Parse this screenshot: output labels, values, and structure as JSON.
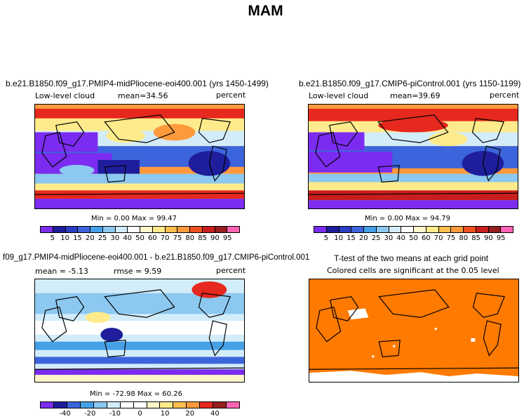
{
  "figure": {
    "title": "MAM",
    "colors": {
      "purple": "#7b2cf0",
      "navy": "#1e1e9c",
      "blue": "#3c64dc",
      "sky": "#8cc8f0",
      "paleblue": "#d2ecfa",
      "white": "#ffffff",
      "yellow": "#ffeb8c",
      "orange": "#ff9a3c",
      "red": "#e6281e",
      "darkred": "#961e1e",
      "tt_orange": "#ff7a00",
      "land": "#000000"
    }
  },
  "panels": {
    "p1": {
      "title": "b.e21.B1850.f09_g17.PMIP4-midPliocene-eoi400.001 (yrs 1450-1499)",
      "left_label": "Low-level cloud",
      "mean_label": "mean=",
      "mean_value": "34.56",
      "units": "percent",
      "minmax": "Min =    0.00 Max =   99.47"
    },
    "p2": {
      "title": "b.e21.B1850.f09_g17.CMIP6-piControl.001 (yrs 1150-1199)",
      "left_label": "Low-level cloud",
      "mean_label": "mean=",
      "mean_value": "39.69",
      "units": "percent",
      "minmax": "Min =    0.00 Max =   94.79"
    },
    "p3": {
      "title": "f09_g17.PMIP4-midPliocene-eoi400.001 - b.e21.B1850.f09_g17.CMIP6-piControl.001",
      "mean_text": "mean =  -5.13",
      "rmse_text": "rmse =   9.59",
      "units": "percent",
      "minmax": "Min = -72.98 Max =  60.26"
    },
    "p4": {
      "title": "T-test of the two means at each grid point",
      "subtitle": "Colored cells are significant at the 0.05 level"
    }
  },
  "colorbars": {
    "abs_ticks": [
      "5",
      "10",
      "15",
      "20",
      "25",
      "30",
      "40",
      "50",
      "60",
      "70",
      "75",
      "80",
      "85",
      "90",
      "95"
    ],
    "abs_colors": [
      "#7b2cf0",
      "#1e1e9c",
      "#2a3ec4",
      "#3c64dc",
      "#46a0e6",
      "#8cc8f0",
      "#d2ecfa",
      "#ffffff",
      "#fff5c8",
      "#ffeb8c",
      "#ffbe50",
      "#ff9a3c",
      "#f0501e",
      "#c81e1e",
      "#961e1e",
      "#ff64b4"
    ],
    "diff_ticks": [
      "-40",
      "-20",
      "-10",
      "0",
      "10",
      "20",
      "40"
    ],
    "diff_colors": [
      "#7b2cf0",
      "#1e1e9c",
      "#3c64dc",
      "#46a0e6",
      "#8cc8f0",
      "#d2ecfa",
      "#ffffff",
      "#ffffff",
      "#fff5c8",
      "#ffeb8c",
      "#ffbe50",
      "#ff9a3c",
      "#e6281e",
      "#961e1e",
      "#ff64b4"
    ]
  }
}
